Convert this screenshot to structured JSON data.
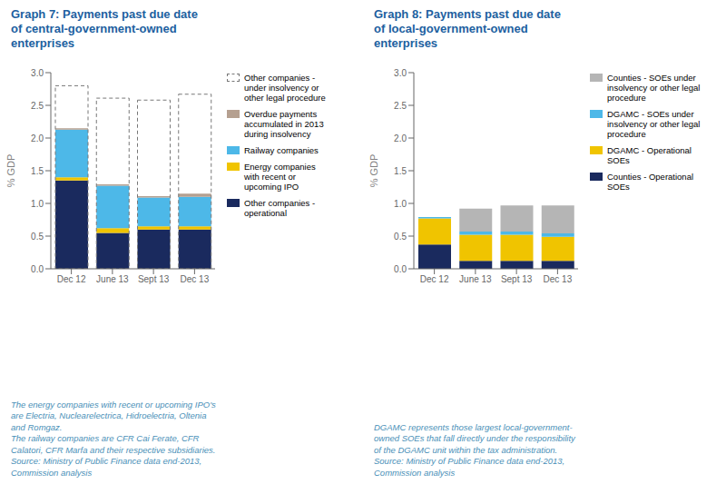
{
  "chart_data": [
    {
      "type": "bar",
      "stacked": true,
      "title": "Graph 7: Payments past due date\nof central-government-owned\nenterprises",
      "categories": [
        "Dec 12",
        "June 13",
        "Sept 13",
        "Dec 13"
      ],
      "ylabel": "% GDP",
      "ylim": [
        0,
        3.0
      ],
      "yticks": [
        {
          "value": 0.0,
          "label": "0.0"
        },
        {
          "value": 0.5,
          "label": "0.5"
        },
        {
          "value": 1.0,
          "label": "1.0"
        },
        {
          "value": 1.5,
          "label": "1.5"
        },
        {
          "value": 2.0,
          "label": "2.0"
        },
        {
          "value": 2.5,
          "label": "2.5"
        },
        {
          "value": 3.0,
          "label": "3.0"
        }
      ],
      "legend": "right",
      "annotations": [
        "The energy companies with recent or upcoming IPO's\nare Electria, Nuclearelectrica, Hidroelectria, Oltenia\nand Romgaz.\nThe railway companies are CFR Cai Ferate, CFR\nCalatori, CFR Marfa and their respective subsidiaries.\nSource: Ministry of Public Finance data end-2013,\nCommission analysis"
      ],
      "series": [
        {
          "name": "Other companies -\noperational",
          "color": "#1a2a5e",
          "values": [
            1.35,
            0.55,
            0.6,
            0.6
          ]
        },
        {
          "name": "Energy companies\nwith recent or\nupcoming IPO",
          "color": "#f0c400",
          "values": [
            0.05,
            0.07,
            0.05,
            0.05
          ]
        },
        {
          "name": "Railway companies",
          "color": "#4db8e8",
          "values": [
            0.73,
            0.65,
            0.44,
            0.45
          ]
        },
        {
          "name": "Overdue payments\naccumulated in 2013\nduring insolvency",
          "color": "#b5a090",
          "values": [
            0.02,
            0.02,
            0.02,
            0.05
          ]
        },
        {
          "name": "Other companies -\nunder insolvency or\nother legal procedure",
          "type": "outline",
          "line_style": "dashed",
          "color": "#777777",
          "values": [
            2.8,
            2.61,
            2.58,
            2.67
          ]
        }
      ]
    },
    {
      "type": "bar",
      "stacked": true,
      "title": "Graph 8: Payments past due date\nof local-government-owned\nenterprises",
      "categories": [
        "Dec 12",
        "June 13",
        "Sept 13",
        "Dec 13"
      ],
      "ylabel": "% GDP",
      "ylim": [
        0,
        3.0
      ],
      "yticks": [
        {
          "value": 0.0,
          "label": "0.0"
        },
        {
          "value": 0.5,
          "label": "0.5"
        },
        {
          "value": 1.0,
          "label": "1.0"
        },
        {
          "value": 1.5,
          "label": "1.5"
        },
        {
          "value": 2.0,
          "label": "2.0"
        },
        {
          "value": 2.5,
          "label": "2.5"
        },
        {
          "value": 3.0,
          "label": "3.0"
        }
      ],
      "legend": "right",
      "annotations": [
        "DGAMC represents those largest local-government-\nowned SOEs that fall directly under the responsibility\nof the DGAMC unit within the tax administration.\nSource: Ministry of Public Finance data end-2013,\nCommission analysis"
      ],
      "series": [
        {
          "name": "Counties - Operational\nSOEs",
          "color": "#1a2a5e",
          "values": [
            0.37,
            0.12,
            0.12,
            0.12
          ]
        },
        {
          "name": "DGAMC - Operational\nSOEs",
          "color": "#f0c400",
          "values": [
            0.4,
            0.4,
            0.4,
            0.37
          ]
        },
        {
          "name": "DGAMC - SOEs under\ninsolvency or other legal\nprocedure",
          "color": "#4db8e8",
          "values": [
            0.02,
            0.05,
            0.05,
            0.05
          ]
        },
        {
          "name": "Counties - SOEs under\ninsolvency or other legal\nprocedure",
          "color": "#b5b5b5",
          "values": [
            0.0,
            0.35,
            0.4,
            0.43
          ]
        }
      ]
    }
  ]
}
